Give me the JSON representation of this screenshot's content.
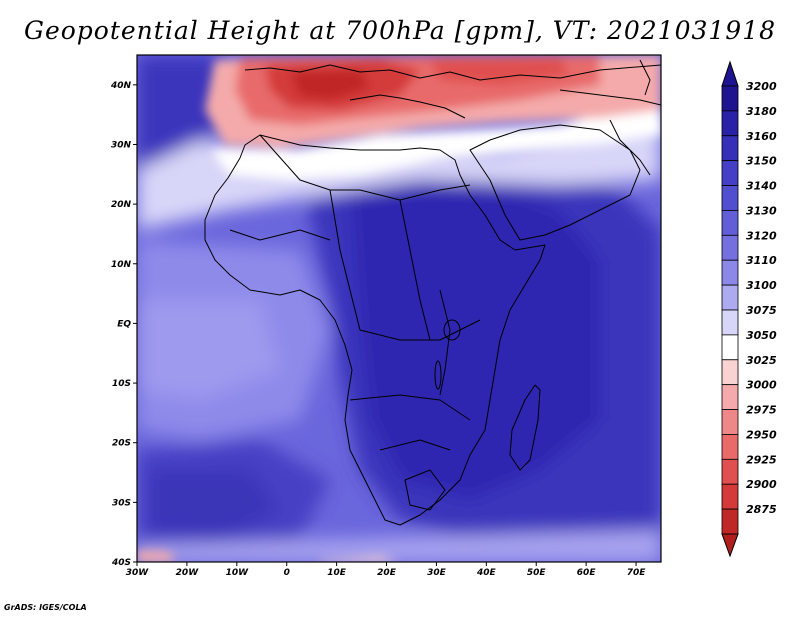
{
  "title": "Geopotential Height at 700hPa [gpm], VT: 2021031918",
  "credit": "GrADS: IGES/COLA",
  "map": {
    "lon_range": [
      -30,
      75
    ],
    "lat_range": [
      -40,
      45
    ],
    "lon_ticks": [
      {
        "lon": -30,
        "label": "30W"
      },
      {
        "lon": -20,
        "label": "20W"
      },
      {
        "lon": -10,
        "label": "10W"
      },
      {
        "lon": 0,
        "label": "0"
      },
      {
        "lon": 10,
        "label": "10E"
      },
      {
        "lon": 20,
        "label": "20E"
      },
      {
        "lon": 30,
        "label": "30E"
      },
      {
        "lon": 40,
        "label": "40E"
      },
      {
        "lon": 50,
        "label": "50E"
      },
      {
        "lon": 60,
        "label": "60E"
      },
      {
        "lon": 70,
        "label": "70E"
      }
    ],
    "lat_ticks": [
      {
        "lat": 40,
        "label": "40N"
      },
      {
        "lat": 30,
        "label": "30N"
      },
      {
        "lat": 20,
        "label": "20N"
      },
      {
        "lat": 10,
        "label": "10N"
      },
      {
        "lat": 0,
        "label": "EQ"
      },
      {
        "lat": -10,
        "label": "10S"
      },
      {
        "lat": -20,
        "label": "20S"
      },
      {
        "lat": -30,
        "label": "30S"
      },
      {
        "lat": -40,
        "label": "40S"
      }
    ]
  },
  "colorbar": [
    {
      "label": "3200",
      "color": "#1e1490"
    },
    {
      "label": "3180",
      "color": "#2a22a6"
    },
    {
      "label": "3160",
      "color": "#3630b8"
    },
    {
      "label": "3150",
      "color": "#443fc6"
    },
    {
      "label": "3140",
      "color": "#524ed0"
    },
    {
      "label": "3130",
      "color": "#625ed8"
    },
    {
      "label": "3120",
      "color": "#7470e0"
    },
    {
      "label": "3110",
      "color": "#8c88e8"
    },
    {
      "label": "3100",
      "color": "#aeaaf0"
    },
    {
      "label": "3075",
      "color": "#d8d6f8"
    },
    {
      "label": "3050",
      "color": "#ffffff"
    },
    {
      "label": "3025",
      "color": "#fad2d2"
    },
    {
      "label": "3000",
      "color": "#f4aaaa"
    },
    {
      "label": "2975",
      "color": "#ee8888"
    },
    {
      "label": "2950",
      "color": "#e86a6a"
    },
    {
      "label": "2925",
      "color": "#e05050"
    },
    {
      "label": "2900",
      "color": "#d43a3a"
    },
    {
      "label": "2875",
      "color": "#c02828"
    }
  ],
  "colorbar_top_color": "#1e1490",
  "colorbar_bottom_color": "#b01e1e"
}
